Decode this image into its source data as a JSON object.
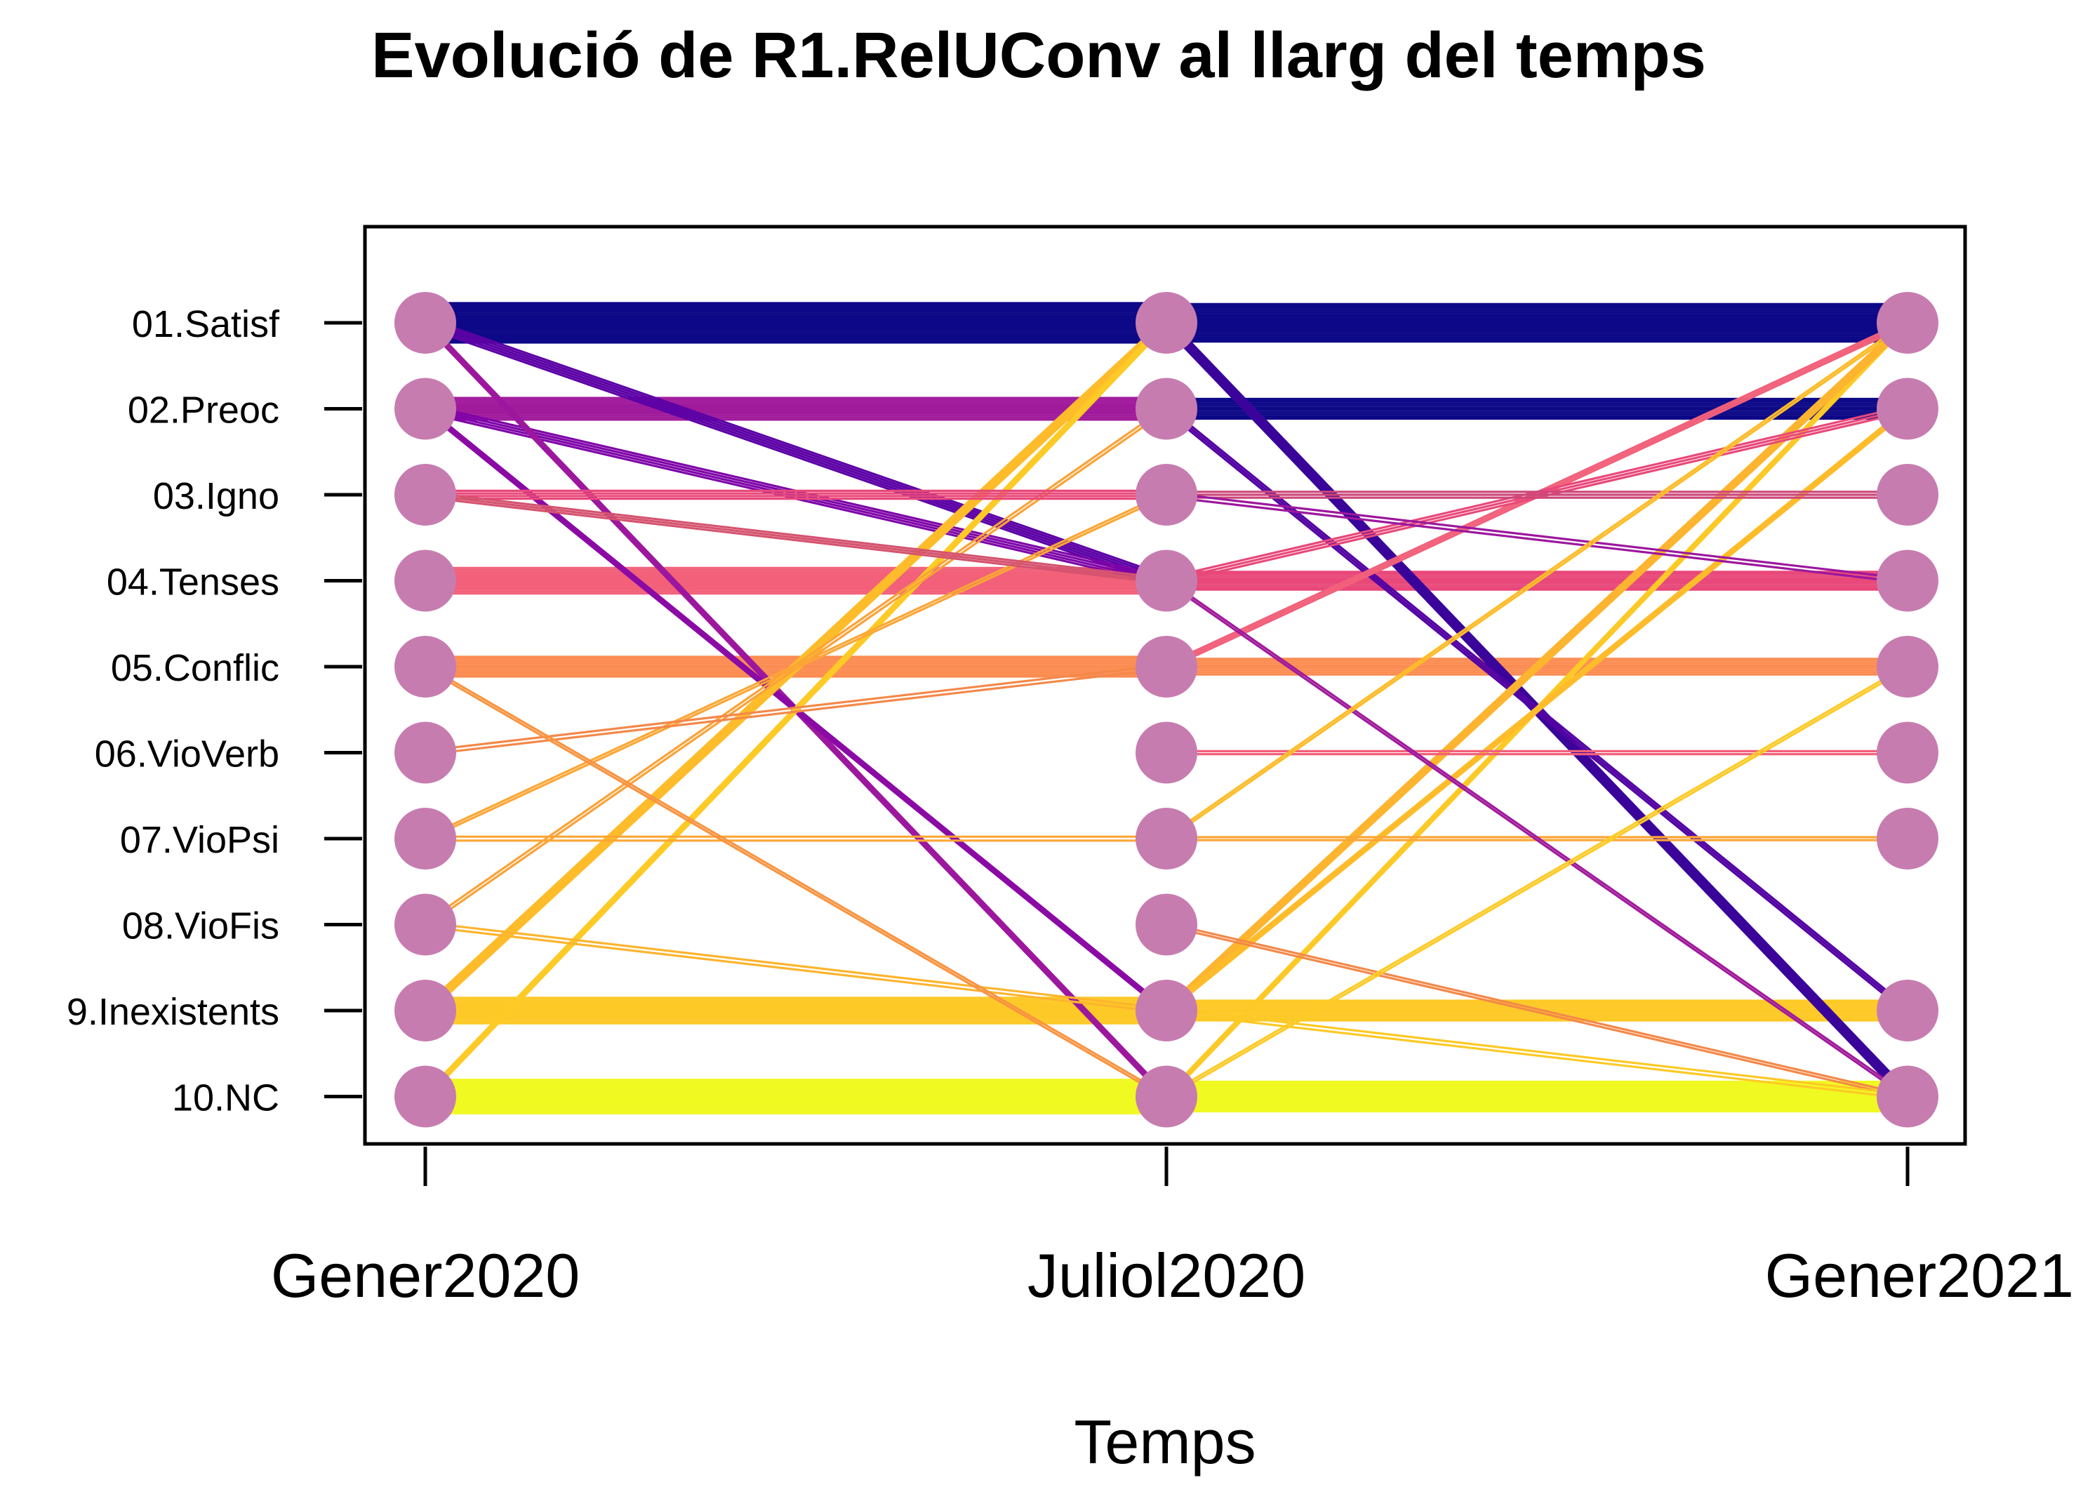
{
  "chart_data": {
    "type": "line",
    "title": "Evolució de  R1.RelUConv al llarg del temps",
    "xlabel": "Temps",
    "ylabel": "",
    "x": [
      "Gener2020",
      "Juliol2020",
      "Gener2021"
    ],
    "categories": [
      "01.Satisf",
      "02.Preoc",
      "03.Igno",
      "04.Tenses",
      "05.Conflic",
      "06.VioVerb",
      "07.VioPsi",
      "08.VioFis",
      "9.Inexistents",
      "10.NC"
    ],
    "category_colors": [
      "#0d0887",
      "#5302a3",
      "#8b0aa5",
      "#b83289",
      "#db5c68",
      "#f48849",
      "#febc2a",
      "#f9e021",
      "#fdc926",
      "#f0f921"
    ],
    "node_color": "#c77cb0",
    "points_present": {
      "Gener2020": [
        true,
        true,
        true,
        true,
        true,
        true,
        true,
        true,
        true,
        true
      ],
      "Juliol2020": [
        true,
        true,
        true,
        true,
        true,
        true,
        true,
        true,
        true,
        true
      ],
      "Gener2021": [
        true,
        true,
        true,
        true,
        true,
        true,
        true,
        false,
        true,
        true
      ]
    },
    "flows": [
      {
        "from": [
          0,
          0
        ],
        "to": [
          1,
          0
        ],
        "weight": 40,
        "color": "#0d0887"
      },
      {
        "from": [
          1,
          0
        ],
        "to": [
          2,
          0
        ],
        "weight": 38,
        "color": "#0d0887"
      },
      {
        "from": [
          0,
          1
        ],
        "to": [
          1,
          1
        ],
        "weight": 22,
        "color": "#a01a9c"
      },
      {
        "from": [
          1,
          1
        ],
        "to": [
          2,
          1
        ],
        "weight": 20,
        "color": "#0d0887"
      },
      {
        "from": [
          0,
          3
        ],
        "to": [
          1,
          3
        ],
        "weight": 26,
        "color": "#f2607a"
      },
      {
        "from": [
          1,
          3
        ],
        "to": [
          2,
          3
        ],
        "weight": 18,
        "color": "#e8487a"
      },
      {
        "from": [
          0,
          4
        ],
        "to": [
          1,
          4
        ],
        "weight": 20,
        "color": "#fb8c52"
      },
      {
        "from": [
          1,
          4
        ],
        "to": [
          2,
          4
        ],
        "weight": 16,
        "color": "#fb8c52"
      },
      {
        "from": [
          0,
          8
        ],
        "to": [
          1,
          8
        ],
        "weight": 26,
        "color": "#fdc926"
      },
      {
        "from": [
          1,
          8
        ],
        "to": [
          2,
          8
        ],
        "weight": 20,
        "color": "#fdc926"
      },
      {
        "from": [
          0,
          9
        ],
        "to": [
          1,
          9
        ],
        "weight": 34,
        "color": "#f0f921"
      },
      {
        "from": [
          1,
          9
        ],
        "to": [
          2,
          9
        ],
        "weight": 30,
        "color": "#f0f921"
      },
      {
        "from": [
          0,
          0
        ],
        "to": [
          1,
          3
        ],
        "weight": 10,
        "color": "#5c01a6"
      },
      {
        "from": [
          0,
          1
        ],
        "to": [
          1,
          3
        ],
        "weight": 8,
        "color": "#7e03a8"
      },
      {
        "from": [
          0,
          0
        ],
        "to": [
          1,
          9
        ],
        "weight": 6,
        "color": "#9c179e"
      },
      {
        "from": [
          0,
          1
        ],
        "to": [
          1,
          8
        ],
        "weight": 5,
        "color": "#8b0aa5"
      },
      {
        "from": [
          0,
          8
        ],
        "to": [
          1,
          0
        ],
        "weight": 10,
        "color": "#febc2a"
      },
      {
        "from": [
          0,
          9
        ],
        "to": [
          1,
          0
        ],
        "weight": 6,
        "color": "#fdca26"
      },
      {
        "from": [
          0,
          7
        ],
        "to": [
          1,
          1
        ],
        "weight": 4,
        "color": "#fba238"
      },
      {
        "from": [
          0,
          6
        ],
        "to": [
          1,
          2
        ],
        "weight": 3,
        "color": "#fca636"
      },
      {
        "from": [
          0,
          2
        ],
        "to": [
          1,
          2
        ],
        "weight": 8,
        "color": "#e8487a"
      },
      {
        "from": [
          0,
          2
        ],
        "to": [
          1,
          3
        ],
        "weight": 5,
        "color": "#d5536f"
      },
      {
        "from": [
          0,
          5
        ],
        "to": [
          1,
          4
        ],
        "weight": 4,
        "color": "#f48849"
      },
      {
        "from": [
          0,
          6
        ],
        "to": [
          1,
          6
        ],
        "weight": 4,
        "color": "#fca636"
      },
      {
        "from": [
          0,
          7
        ],
        "to": [
          1,
          8
        ],
        "weight": 4,
        "color": "#fdb42f"
      },
      {
        "from": [
          0,
          4
        ],
        "to": [
          1,
          9
        ],
        "weight": 3,
        "color": "#f89441"
      },
      {
        "from": [
          1,
          0
        ],
        "to": [
          2,
          9
        ],
        "weight": 12,
        "color": "#3a049a"
      },
      {
        "from": [
          1,
          1
        ],
        "to": [
          2,
          8
        ],
        "weight": 6,
        "color": "#5302a3"
      },
      {
        "from": [
          1,
          9
        ],
        "to": [
          2,
          0
        ],
        "weight": 5,
        "color": "#fdc926"
      },
      {
        "from": [
          1,
          8
        ],
        "to": [
          2,
          0
        ],
        "weight": 8,
        "color": "#fdb42f"
      },
      {
        "from": [
          1,
          8
        ],
        "to": [
          2,
          1
        ],
        "weight": 5,
        "color": "#febc2a"
      },
      {
        "from": [
          1,
          4
        ],
        "to": [
          2,
          0
        ],
        "weight": 5,
        "color": "#f2607a"
      },
      {
        "from": [
          1,
          3
        ],
        "to": [
          2,
          1
        ],
        "weight": 6,
        "color": "#e8487a"
      },
      {
        "from": [
          1,
          2
        ],
        "to": [
          2,
          2
        ],
        "weight": 6,
        "color": "#cc4778"
      },
      {
        "from": [
          1,
          2
        ],
        "to": [
          2,
          3
        ],
        "weight": 4,
        "color": "#9c179e"
      },
      {
        "from": [
          1,
          6
        ],
        "to": [
          2,
          6
        ],
        "weight": 3,
        "color": "#fca636"
      },
      {
        "from": [
          1,
          5
        ],
        "to": [
          2,
          5
        ],
        "weight": 3,
        "color": "#f2607a"
      },
      {
        "from": [
          1,
          7
        ],
        "to": [
          2,
          9
        ],
        "weight": 3,
        "color": "#f48849"
      },
      {
        "from": [
          1,
          3
        ],
        "to": [
          2,
          9
        ],
        "weight": 3,
        "color": "#a01a9c"
      },
      {
        "from": [
          1,
          6
        ],
        "to": [
          2,
          0
        ],
        "weight": 3,
        "color": "#febc2a"
      },
      {
        "from": [
          1,
          9
        ],
        "to": [
          2,
          4
        ],
        "weight": 3,
        "color": "#fdca26"
      },
      {
        "from": [
          1,
          8
        ],
        "to": [
          2,
          9
        ],
        "weight": 4,
        "color": "#fdc926"
      }
    ]
  }
}
